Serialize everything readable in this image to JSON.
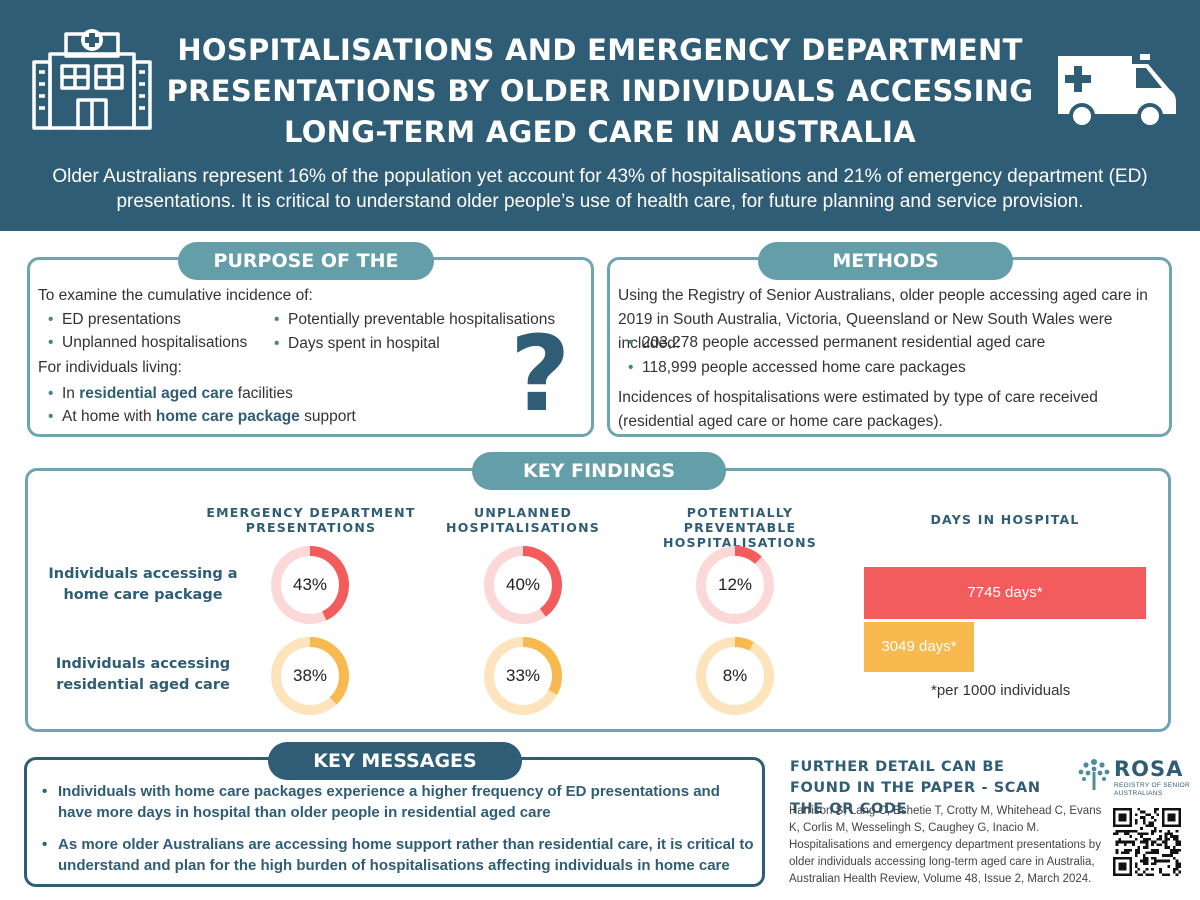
{
  "header": {
    "title": "HOSPITALISATIONS AND EMERGENCY DEPARTMENT PRESENTATIONS BY OLDER INDIVIDUALS ACCESSING LONG-TERM AGED CARE IN AUSTRALIA",
    "subtitle": "Older Australians represent 16% of the population yet account for 43% of hospitalisations and 21% of emergency department (ED) presentations. It is critical to understand older people’s use of health care, for future planning and service provision.",
    "left_icon": "hospital-building-icon",
    "right_icon": "ambulance-icon"
  },
  "purpose": {
    "heading": "PURPOSE OF THE STUDY",
    "intro": "To examine the cumulative incidence of:",
    "items_left": [
      "ED presentations",
      "Unplanned hospitalisations"
    ],
    "items_right": [
      "Potentially preventable hospitalisations",
      "Days spent in hospital"
    ],
    "living_intro": "For individuals living:",
    "living1_pre": "In ",
    "living1_bold": "residential aged care",
    "living1_post": " facilities",
    "living2_pre": "At home with ",
    "living2_bold": "home care package",
    "living2_post": " support",
    "icon": "question-mark-icon"
  },
  "methods": {
    "heading": "METHODS",
    "intro": "Using the Registry of Senior Australians, older people accessing aged care in 2019 in South Australia, Victoria, Queensland or New South Wales were included:",
    "items": [
      "203,278 people accessed permanent residential aged care",
      "118,999 people accessed home care packages"
    ],
    "outro": "Incidences of hospitalisations were estimated by type of care received (residential aged care or home care packages)."
  },
  "findings": {
    "heading": "KEY FINDINGS",
    "col_ed": "EMERGENCY DEPARTMENT PRESENTATIONS",
    "col_unplanned": "UNPLANNED HOSPITALISATIONS",
    "col_preventable": "POTENTIALLY PREVENTABLE HOSPITALISATIONS",
    "col_days": "DAYS IN HOSPITAL",
    "row_home": "Individuals accessing a home care package",
    "row_residential": "Individuals accessing residential aged care",
    "home": {
      "ed": "43%",
      "unplanned": "40%",
      "preventable": "12%",
      "days": "7745 days*"
    },
    "residential": {
      "ed": "38%",
      "unplanned": "33%",
      "preventable": "8%",
      "days": "3049 days*"
    },
    "footnote": "*per 1000 individuals",
    "colors": {
      "home": "#f25c5c",
      "home_track": "#fcd8d8",
      "residential": "#f8b94e",
      "residential_track": "#fde4bd"
    }
  },
  "chart_data": {
    "type": "bar",
    "categories": [
      "Individuals accessing a home care package",
      "Individuals accessing residential aged care"
    ],
    "series": [
      {
        "name": "EMERGENCY DEPARTMENT PRESENTATIONS",
        "values": [
          43,
          38
        ]
      },
      {
        "name": "UNPLANNED HOSPITALISATIONS",
        "values": [
          40,
          33
        ]
      },
      {
        "name": "POTENTIALLY PREVENTABLE HOSPITALISATIONS",
        "values": [
          12,
          8
        ]
      },
      {
        "name": "DAYS IN HOSPITAL",
        "values": [
          7745,
          3049
        ]
      }
    ]
  },
  "messages": {
    "heading": "KEY MESSAGES",
    "items": [
      "Individuals with home care packages experience a higher frequency of ED presentations and have more days in hospital than older people in residential aged care",
      "As more older Australians are accessing home support rather than residential care, it is critical to understand and plan for the high burden of hospitalisations affecting individuals in home care"
    ]
  },
  "further": {
    "heading": "FURTHER DETAIL CAN BE FOUND IN THE PAPER - SCAN THE QR CODE",
    "citation": "Harrison S, Lang C, Eshetie T, Crotty M, Whitehead C, Evans K, Corlis M, Wesselingh S, Caughey G, Inacio M. Hospitalisations and emergency department presentations by older individuals accessing long-term aged care in Australia, Australian Health Review, Volume 48, Issue 2, March 2024.",
    "logo_name": "ROSA",
    "logo_sub": "REGISTRY OF SENIOR AUSTRALIANS",
    "qr_icon": "qr-code-icon"
  }
}
